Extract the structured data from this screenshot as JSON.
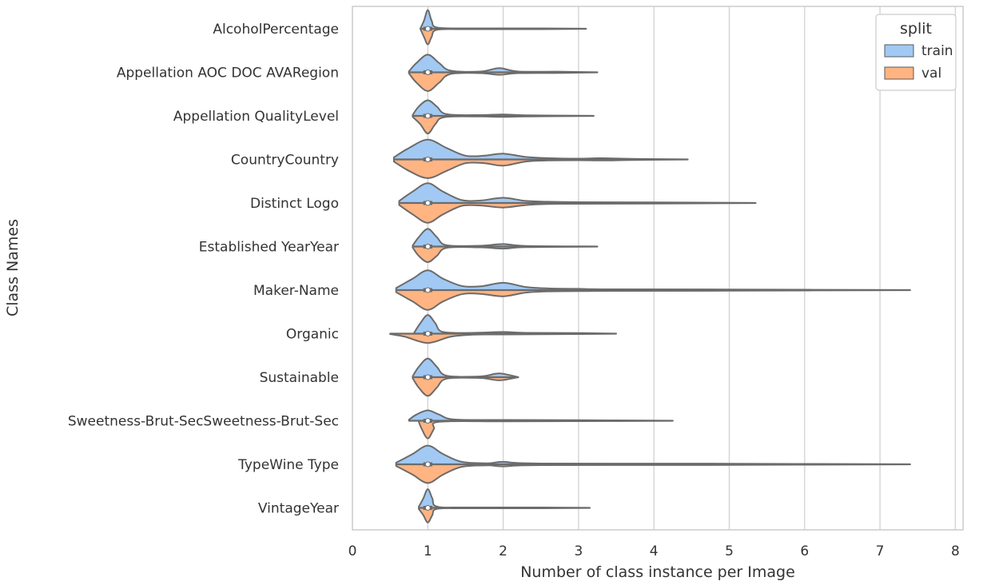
{
  "chart_data": {
    "type": "violin",
    "orientation": "horizontal",
    "split": true,
    "xlabel": "Number of class instance per Image",
    "ylabel": "Class Names",
    "xlim": [
      0,
      8.4
    ],
    "xticks": [
      0,
      1,
      2,
      3,
      4,
      5,
      6,
      7,
      8
    ],
    "grid": "vertical",
    "legend": {
      "title": "split",
      "placement": "top-right",
      "entries": [
        {
          "name": "train",
          "color": "#a1c9f4"
        },
        {
          "name": "val",
          "color": "#ffb482"
        }
      ]
    },
    "categories": [
      {
        "name": "AlcoholPercentage",
        "min": 0.9,
        "max": 3.1,
        "median": 1,
        "train": [
          [
            0.9,
            0
          ],
          [
            0.95,
            0.4
          ],
          [
            1.0,
            0.9
          ],
          [
            1.05,
            0.4
          ],
          [
            1.12,
            0.06
          ],
          [
            1.5,
            0.02
          ],
          [
            2.5,
            0.02
          ],
          [
            3.1,
            0
          ]
        ],
        "val": [
          [
            0.9,
            0
          ],
          [
            0.95,
            0.4
          ],
          [
            1.0,
            0.75
          ],
          [
            1.05,
            0.4
          ],
          [
            1.12,
            0.05
          ],
          [
            1.5,
            0.02
          ],
          [
            2.5,
            0.02
          ],
          [
            3.1,
            0
          ]
        ]
      },
      {
        "name": "Appellation AOC DOC AVARegion",
        "min": 0.75,
        "max": 3.25,
        "median": 1,
        "train": [
          [
            0.75,
            0.05
          ],
          [
            0.85,
            0.45
          ],
          [
            1.0,
            0.85
          ],
          [
            1.15,
            0.45
          ],
          [
            1.3,
            0.08
          ],
          [
            1.7,
            0.04
          ],
          [
            1.95,
            0.2
          ],
          [
            2.2,
            0.04
          ],
          [
            2.8,
            0.03
          ],
          [
            3.25,
            0
          ]
        ],
        "val": [
          [
            0.75,
            0.05
          ],
          [
            0.85,
            0.5
          ],
          [
            1.0,
            0.9
          ],
          [
            1.15,
            0.5
          ],
          [
            1.3,
            0.08
          ],
          [
            1.7,
            0.04
          ],
          [
            1.95,
            0.12
          ],
          [
            2.2,
            0.04
          ],
          [
            2.8,
            0.03
          ],
          [
            3.25,
            0
          ]
        ]
      },
      {
        "name": "Appellation QualityLevel",
        "min": 0.8,
        "max": 3.2,
        "median": 1,
        "train": [
          [
            0.8,
            0.05
          ],
          [
            0.88,
            0.45
          ],
          [
            1.0,
            0.75
          ],
          [
            1.12,
            0.45
          ],
          [
            1.25,
            0.08
          ],
          [
            1.7,
            0.04
          ],
          [
            2.0,
            0.07
          ],
          [
            2.3,
            0.03
          ],
          [
            3.2,
            0
          ]
        ],
        "val": [
          [
            0.8,
            0.05
          ],
          [
            0.9,
            0.4
          ],
          [
            1.0,
            0.85
          ],
          [
            1.1,
            0.4
          ],
          [
            1.22,
            0.06
          ],
          [
            1.7,
            0.03
          ],
          [
            2.0,
            0.05
          ],
          [
            2.3,
            0.03
          ],
          [
            3.2,
            0
          ]
        ]
      },
      {
        "name": "CountryCountry",
        "min": 0.55,
        "max": 4.45,
        "median": 1,
        "train": [
          [
            0.55,
            0.1
          ],
          [
            0.75,
            0.55
          ],
          [
            1.0,
            0.95
          ],
          [
            1.25,
            0.55
          ],
          [
            1.5,
            0.18
          ],
          [
            1.75,
            0.18
          ],
          [
            2.0,
            0.28
          ],
          [
            2.3,
            0.12
          ],
          [
            2.6,
            0.06
          ],
          [
            3.0,
            0.04
          ],
          [
            3.3,
            0.06
          ],
          [
            3.7,
            0.03
          ],
          [
            4.45,
            0
          ]
        ],
        "val": [
          [
            0.55,
            0.1
          ],
          [
            0.75,
            0.55
          ],
          [
            1.0,
            0.9
          ],
          [
            1.25,
            0.55
          ],
          [
            1.5,
            0.18
          ],
          [
            1.75,
            0.18
          ],
          [
            2.0,
            0.3
          ],
          [
            2.3,
            0.1
          ],
          [
            2.6,
            0.05
          ],
          [
            3.0,
            0.04
          ],
          [
            3.3,
            0.05
          ],
          [
            3.7,
            0.03
          ],
          [
            4.45,
            0
          ]
        ]
      },
      {
        "name": "Distinct Logo",
        "min": 0.62,
        "max": 5.35,
        "median": 1,
        "train": [
          [
            0.62,
            0.1
          ],
          [
            0.8,
            0.55
          ],
          [
            1.0,
            0.95
          ],
          [
            1.2,
            0.55
          ],
          [
            1.45,
            0.14
          ],
          [
            1.7,
            0.12
          ],
          [
            2.0,
            0.25
          ],
          [
            2.3,
            0.1
          ],
          [
            2.6,
            0.06
          ],
          [
            3.0,
            0.04
          ],
          [
            4.0,
            0.03
          ],
          [
            5.35,
            0
          ]
        ],
        "val": [
          [
            0.62,
            0.1
          ],
          [
            0.8,
            0.55
          ],
          [
            1.0,
            0.95
          ],
          [
            1.2,
            0.55
          ],
          [
            1.45,
            0.14
          ],
          [
            1.7,
            0.12
          ],
          [
            2.0,
            0.22
          ],
          [
            2.3,
            0.1
          ],
          [
            2.6,
            0.05
          ],
          [
            3.0,
            0.04
          ],
          [
            4.0,
            0.03
          ],
          [
            5.35,
            0
          ]
        ]
      },
      {
        "name": "Established YearYear",
        "min": 0.8,
        "max": 3.25,
        "median": 1,
        "train": [
          [
            0.8,
            0.05
          ],
          [
            0.88,
            0.45
          ],
          [
            1.0,
            0.85
          ],
          [
            1.12,
            0.45
          ],
          [
            1.25,
            0.06
          ],
          [
            1.7,
            0.04
          ],
          [
            2.0,
            0.12
          ],
          [
            2.3,
            0.03
          ],
          [
            3.25,
            0
          ]
        ],
        "val": [
          [
            0.8,
            0.05
          ],
          [
            0.88,
            0.45
          ],
          [
            1.0,
            0.75
          ],
          [
            1.12,
            0.45
          ],
          [
            1.25,
            0.06
          ],
          [
            1.7,
            0.04
          ],
          [
            2.0,
            0.1
          ],
          [
            2.3,
            0.03
          ],
          [
            3.25,
            0
          ]
        ]
      },
      {
        "name": "Maker-Name",
        "min": 0.58,
        "max": 7.4,
        "median": 1,
        "train": [
          [
            0.58,
            0.1
          ],
          [
            0.8,
            0.55
          ],
          [
            1.0,
            0.95
          ],
          [
            1.2,
            0.55
          ],
          [
            1.45,
            0.2
          ],
          [
            1.7,
            0.18
          ],
          [
            2.0,
            0.35
          ],
          [
            2.3,
            0.15
          ],
          [
            2.6,
            0.08
          ],
          [
            3.0,
            0.06
          ],
          [
            3.4,
            0.04
          ],
          [
            5.0,
            0.03
          ],
          [
            7.4,
            0
          ]
        ],
        "val": [
          [
            0.58,
            0.1
          ],
          [
            0.8,
            0.55
          ],
          [
            1.0,
            0.95
          ],
          [
            1.2,
            0.55
          ],
          [
            1.45,
            0.2
          ],
          [
            1.7,
            0.18
          ],
          [
            2.0,
            0.3
          ],
          [
            2.3,
            0.12
          ],
          [
            2.6,
            0.06
          ],
          [
            3.0,
            0.05
          ],
          [
            3.4,
            0.04
          ],
          [
            5.0,
            0.03
          ],
          [
            7.4,
            0
          ]
        ]
      },
      {
        "name": "Organic",
        "min": 0.5,
        "max": 3.5,
        "median": 1,
        "train": [
          [
            0.82,
            0.05
          ],
          [
            0.9,
            0.5
          ],
          [
            1.0,
            0.9
          ],
          [
            1.1,
            0.5
          ],
          [
            1.2,
            0.08
          ],
          [
            1.6,
            0.04
          ],
          [
            2.0,
            0.08
          ],
          [
            2.3,
            0.04
          ],
          [
            3.0,
            0.03
          ],
          [
            3.5,
            0
          ]
        ],
        "val": [
          [
            0.5,
            0.02
          ],
          [
            0.7,
            0.15
          ],
          [
            1.0,
            0.45
          ],
          [
            1.3,
            0.15
          ],
          [
            1.6,
            0.05
          ],
          [
            2.0,
            0.04
          ],
          [
            3.0,
            0.02
          ],
          [
            3.5,
            0
          ]
        ]
      },
      {
        "name": "Sustainable",
        "min": 0.8,
        "max": 2.2,
        "median": 1,
        "train": [
          [
            0.8,
            0.05
          ],
          [
            0.88,
            0.5
          ],
          [
            1.0,
            0.9
          ],
          [
            1.12,
            0.5
          ],
          [
            1.25,
            0.07
          ],
          [
            1.7,
            0.04
          ],
          [
            1.95,
            0.18
          ],
          [
            2.2,
            0
          ]
        ],
        "val": [
          [
            0.8,
            0.05
          ],
          [
            0.88,
            0.5
          ],
          [
            1.0,
            0.9
          ],
          [
            1.12,
            0.5
          ],
          [
            1.25,
            0.07
          ],
          [
            1.7,
            0.04
          ],
          [
            1.95,
            0.15
          ],
          [
            2.2,
            0
          ]
        ]
      },
      {
        "name": "Sweetness-Brut-SecSweetness-Brut-Sec",
        "min": 0.75,
        "max": 4.25,
        "median": 1,
        "train": [
          [
            0.75,
            0.05
          ],
          [
            0.85,
            0.3
          ],
          [
            1.0,
            0.5
          ],
          [
            1.15,
            0.3
          ],
          [
            1.35,
            0.06
          ],
          [
            2.0,
            0.04
          ],
          [
            3.0,
            0.03
          ],
          [
            4.25,
            0
          ]
        ],
        "val": [
          [
            0.88,
            0.05
          ],
          [
            0.92,
            0.4
          ],
          [
            1.0,
            0.85
          ],
          [
            1.08,
            0.4
          ],
          [
            1.15,
            0.05
          ],
          [
            2.0,
            0.03
          ],
          [
            3.0,
            0.02
          ],
          [
            4.25,
            0
          ]
        ]
      },
      {
        "name": "TypeWine Type",
        "min": 0.58,
        "max": 7.4,
        "median": 1,
        "train": [
          [
            0.58,
            0.08
          ],
          [
            0.8,
            0.5
          ],
          [
            1.0,
            0.9
          ],
          [
            1.2,
            0.5
          ],
          [
            1.45,
            0.12
          ],
          [
            1.8,
            0.05
          ],
          [
            2.0,
            0.12
          ],
          [
            2.5,
            0.04
          ],
          [
            5.0,
            0.03
          ],
          [
            7.4,
            0
          ]
        ],
        "val": [
          [
            0.58,
            0.08
          ],
          [
            0.8,
            0.5
          ],
          [
            1.0,
            0.9
          ],
          [
            1.2,
            0.5
          ],
          [
            1.45,
            0.12
          ],
          [
            1.8,
            0.05
          ],
          [
            2.0,
            0.1
          ],
          [
            2.5,
            0.04
          ],
          [
            5.0,
            0.03
          ],
          [
            7.4,
            0
          ]
        ]
      },
      {
        "name": "VintageYear",
        "min": 0.88,
        "max": 3.15,
        "median": 1,
        "train": [
          [
            0.88,
            0.05
          ],
          [
            0.94,
            0.45
          ],
          [
            1.0,
            0.9
          ],
          [
            1.06,
            0.45
          ],
          [
            1.12,
            0.06
          ],
          [
            1.5,
            0.02
          ],
          [
            2.5,
            0.02
          ],
          [
            3.15,
            0
          ]
        ],
        "val": [
          [
            0.88,
            0.05
          ],
          [
            0.94,
            0.35
          ],
          [
            1.0,
            0.7
          ],
          [
            1.06,
            0.35
          ],
          [
            1.12,
            0.05
          ],
          [
            1.5,
            0.02
          ],
          [
            2.5,
            0.02
          ],
          [
            3.15,
            0
          ]
        ]
      }
    ]
  }
}
